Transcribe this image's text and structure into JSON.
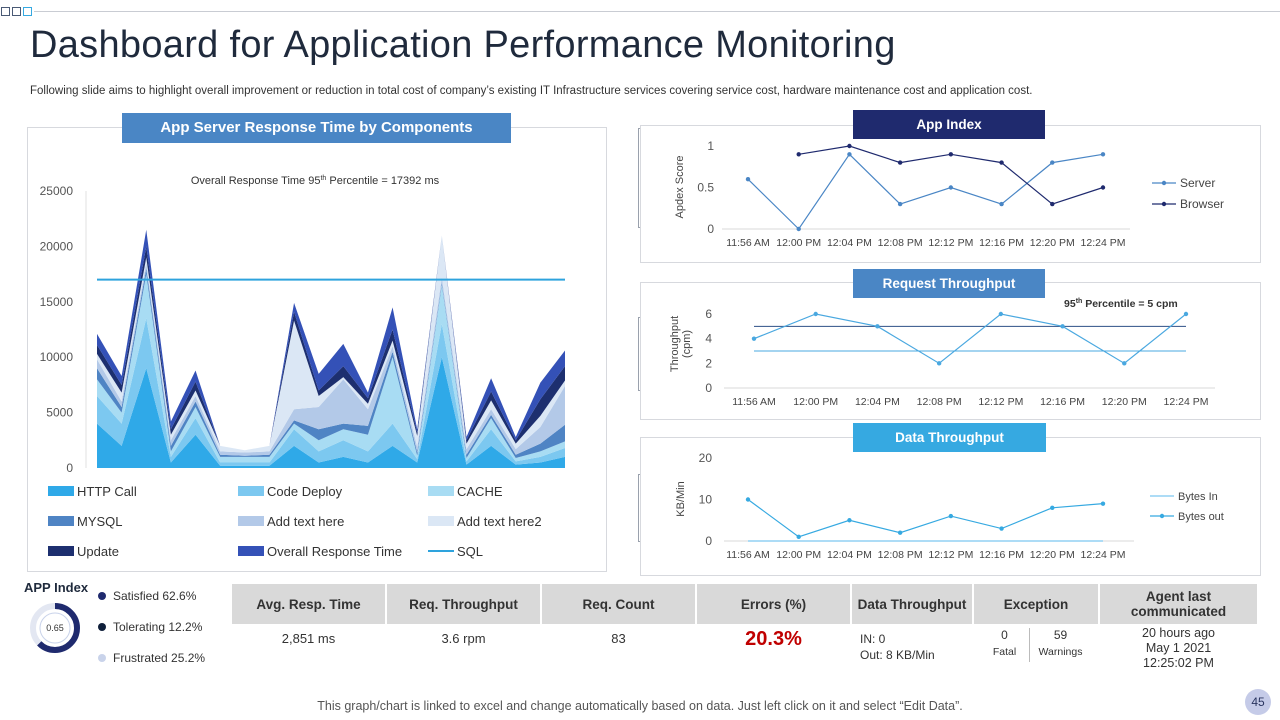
{
  "page": {
    "title": "Dashboard for Application Performance Monitoring",
    "subtitle": "Following slide aims to highlight overall improvement or reduction in  total cost of company’s existing IT Infrastructure services covering service cost, hardware maintenance cost and application cost.",
    "footer": "This graph/chart is linked to excel and change automatically based on data. Just left click on it and select “Edit Data”.",
    "page_number": "45"
  },
  "colors": {
    "title_dark_blue": "#1f2a6e",
    "header_mid_blue": "#4a86c5",
    "header_light_blue": "#36a9e1",
    "error_red": "#c00000"
  },
  "kpi": {
    "headers": [
      "Avg. Resp. Time",
      "Req. Throughput",
      "Req. Count",
      "Errors (%)",
      "Data Throughput",
      "Exception",
      "Agent last communicated"
    ],
    "avg_resp_time": "2,851 ms",
    "req_throughput": "3.6 rpm",
    "req_count": "83",
    "errors": "20.3%",
    "data_in": "IN:  0",
    "data_out": "Out:  8 KB/Min",
    "fatal_count": "0",
    "fatal_label": "Fatal",
    "warnings_count": "59",
    "warnings_label": "Warnings",
    "agent_line1": "20 hours ago",
    "agent_line2": "May 1 2021",
    "agent_line3": "12:25:02 PM"
  },
  "app_index_summary": {
    "title": "APP Index",
    "value": "0.65",
    "satisfied": "Satisfied 62.6%",
    "tolerating": "Tolerating 12.2%",
    "frustrated": "Frustrated 25.2%",
    "satisfied_pct": 62.6,
    "tolerating_pct": 12.2,
    "frustrated_pct": 25.2
  },
  "chart_data": [
    {
      "id": "response_time",
      "type": "area",
      "title": "App  Server Response Time by Components",
      "annotation_pre": "Overall Response Time  95",
      "annotation_sup": "th",
      "annotation_post": " Percentile =  17392 ms",
      "reference_line": 17000,
      "ylim": [
        0,
        25000
      ],
      "yticks": [
        "25000",
        "20000",
        "15000",
        "10000",
        "5000",
        "0"
      ],
      "series": [
        {
          "name": "HTTP Call",
          "color": "#2fa9e8",
          "values": [
            4000,
            2000,
            9000,
            500,
            3000,
            200,
            200,
            200,
            2000,
            500,
            1000,
            500,
            2000,
            500,
            10000,
            300,
            2000,
            300,
            500,
            1000
          ]
        },
        {
          "name": "Code Deploy",
          "color": "#7cc8f0",
          "values": [
            2500,
            2000,
            4500,
            500,
            1500,
            300,
            300,
            300,
            1500,
            1000,
            1500,
            1000,
            2000,
            300,
            3000,
            300,
            1500,
            300,
            500,
            800
          ]
        },
        {
          "name": "CACHE",
          "color": "#a8dcf3",
          "values": [
            1500,
            1000,
            4000,
            500,
            1000,
            500,
            500,
            500,
            500,
            1000,
            1000,
            1500,
            6000,
            300,
            3500,
            300,
            1000,
            300,
            500,
            600
          ]
        },
        {
          "name": "MYSQL",
          "color": "#4f84c4",
          "values": [
            1000,
            500,
            500,
            500,
            500,
            200,
            100,
            200,
            300,
            1000,
            500,
            800,
            500,
            300,
            200,
            300,
            300,
            300,
            700,
            1500
          ]
        },
        {
          "name": "Add text here",
          "color": "#b3c9e8",
          "values": [
            800,
            500,
            500,
            500,
            500,
            300,
            300,
            300,
            1000,
            2000,
            4000,
            1500,
            500,
            500,
            500,
            500,
            500,
            500,
            1500,
            3500
          ]
        },
        {
          "name": "Add text here2",
          "color": "#dbe7f5",
          "values": [
            500,
            800,
            500,
            500,
            500,
            500,
            200,
            500,
            8000,
            1000,
            200,
            500,
            500,
            1000,
            3800,
            500,
            800,
            500,
            1000,
            500
          ]
        },
        {
          "name": "Update",
          "color": "#1d2f6f",
          "values": [
            800,
            700,
            1000,
            500,
            800,
            0,
            0,
            0,
            800,
            500,
            1000,
            500,
            1000,
            300,
            0,
            300,
            800,
            300,
            1500,
            1300
          ]
        },
        {
          "name": "Overall Response Time",
          "color": "#3451b7",
          "values": [
            1000,
            800,
            1500,
            700,
            1000,
            0,
            0,
            0,
            800,
            1500,
            2000,
            500,
            2000,
            300,
            0,
            300,
            1200,
            300,
            1500,
            1400
          ]
        },
        {
          "name": "SQL",
          "color": "#2ea3dd",
          "type": "line",
          "values": [
            17000,
            17000
          ]
        }
      ]
    },
    {
      "id": "app_index",
      "type": "line",
      "title": "App Index",
      "ylabel": "Apdex Score",
      "ylim": [
        0,
        1
      ],
      "yticks": [
        "1",
        "0.5",
        "0"
      ],
      "categories": [
        "11:56 AM",
        "12:00 PM",
        "12:04 PM",
        "12:08 PM",
        "12:12 PM",
        "12:16 PM",
        "12:20 PM",
        "12:24 PM"
      ],
      "series": [
        {
          "name": "Server",
          "color": "#4a86c5",
          "values": [
            0.6,
            0,
            0.9,
            0.3,
            0.5,
            0.3,
            0.8,
            0.9
          ]
        },
        {
          "name": "Browser",
          "color": "#1f2a6e",
          "values": [
            null,
            0.9,
            1.0,
            0.8,
            0.9,
            0.8,
            0.3,
            0.5
          ]
        }
      ]
    },
    {
      "id": "request_throughput",
      "type": "line",
      "title": "Request Throughput",
      "ylabel": "Throughput (cpm)",
      "ylabel_line1": "Throughput",
      "ylabel_line2": "(cpm)",
      "ylim": [
        0,
        6
      ],
      "yticks": [
        "6",
        "4",
        "2",
        "0"
      ],
      "annotation_pre": "95",
      "annotation_sup": "th",
      "annotation_post": " Percentile = 5 cpm",
      "reference_lines": [
        5,
        3
      ],
      "categories": [
        "11:56 AM",
        "12:00 PM",
        "12:04 PM",
        "12:08 PM",
        "12:12 PM",
        "12:16 PM",
        "12:20 PM",
        "12:24 PM"
      ],
      "series": [
        {
          "name": "Throughput",
          "color": "#4aa8e0",
          "values": [
            4,
            6,
            5,
            2,
            6,
            5,
            2,
            6
          ]
        }
      ]
    },
    {
      "id": "data_throughput",
      "type": "line",
      "title": "Data Throughput",
      "ylabel": "KB/Min",
      "ylim": [
        0,
        20
      ],
      "yticks": [
        "20",
        "10",
        "0"
      ],
      "categories": [
        "11:56 AM",
        "12:00 PM",
        "12:04 PM",
        "12:08 PM",
        "12:12 PM",
        "12:16 PM",
        "12:20 PM",
        "12:24 PM"
      ],
      "series": [
        {
          "name": "Bytes In",
          "color": "#7cc8f0",
          "values": [
            0,
            0,
            0,
            0,
            0,
            0,
            0,
            0
          ]
        },
        {
          "name": "Bytes out",
          "color": "#36a9e1",
          "values": [
            10,
            1,
            5,
            2,
            6,
            3,
            8,
            9
          ]
        }
      ]
    }
  ]
}
